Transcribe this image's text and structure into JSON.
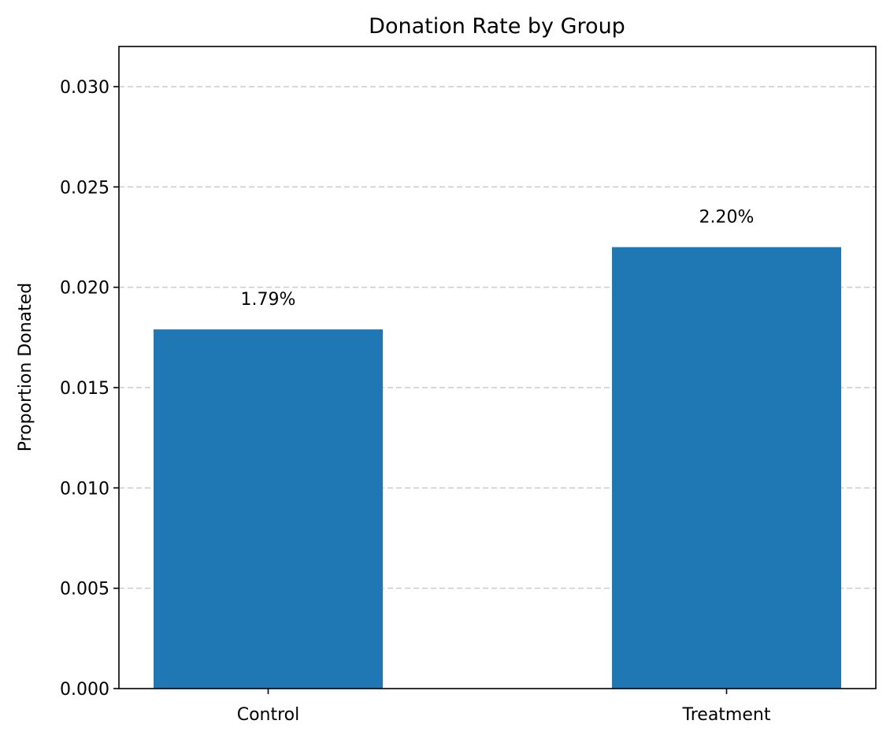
{
  "chart_data": {
    "type": "bar",
    "title": "Donation Rate by Group",
    "xlabel": "",
    "ylabel": "Proportion Donated",
    "categories": [
      "Control",
      "Treatment"
    ],
    "values": [
      0.0179,
      0.022
    ],
    "data_labels": [
      "1.79%",
      "2.20%"
    ],
    "ylim": [
      0,
      0.032
    ],
    "yticks": [
      0.0,
      0.005,
      0.01,
      0.015,
      0.02,
      0.025,
      0.03
    ],
    "ytick_labels": [
      "0.000",
      "0.005",
      "0.010",
      "0.015",
      "0.020",
      "0.025",
      "0.030"
    ],
    "grid": {
      "axis": "y",
      "style": "dashed"
    },
    "bar_color": "#1f77b4",
    "legend": "none"
  }
}
